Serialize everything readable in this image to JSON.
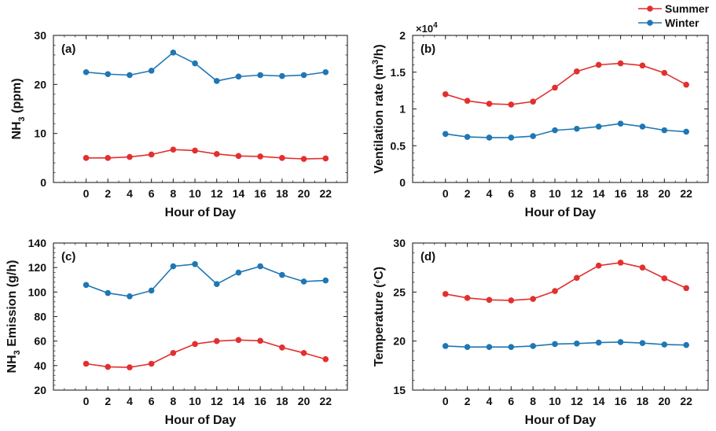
{
  "legend": {
    "position": "top-right",
    "entries": [
      {
        "name": "Summer",
        "color": "#e32f2f"
      },
      {
        "name": "Winter",
        "color": "#1f77b4"
      }
    ]
  },
  "chart_data": [
    {
      "type": "line",
      "panel": "(a)",
      "title": "",
      "xlabel": "Hour of Day",
      "ylabel_main": "NH",
      "ylabel_sub": "3",
      "ylabel_tail": " (ppm)",
      "xlim": [
        -3,
        24
      ],
      "ylim": [
        0,
        30
      ],
      "xticks": [
        0,
        2,
        4,
        6,
        8,
        10,
        12,
        14,
        16,
        18,
        20,
        22
      ],
      "yticks": [
        0,
        10,
        20,
        30
      ],
      "ytick_labels": [
        "0",
        "10",
        "20",
        "30"
      ],
      "x": [
        0,
        2,
        4,
        6,
        8,
        10,
        12,
        14,
        16,
        18,
        20,
        22
      ],
      "series": [
        {
          "name": "Summer",
          "color": "#e32f2f",
          "values": [
            5.0,
            5.0,
            5.2,
            5.7,
            6.7,
            6.5,
            5.8,
            5.4,
            5.3,
            5.0,
            4.8,
            4.9
          ]
        },
        {
          "name": "Winter",
          "color": "#1f77b4",
          "values": [
            22.5,
            22.1,
            21.9,
            22.8,
            26.5,
            24.3,
            20.7,
            21.6,
            21.9,
            21.7,
            21.9,
            22.5
          ]
        }
      ]
    },
    {
      "type": "line",
      "panel": "(b)",
      "title": "",
      "xlabel": "Hour of Day",
      "ylabel_main": "Ventilation rate (m",
      "ylabel_sup": "3",
      "ylabel_tail": "/h)",
      "scale_label": "×10",
      "scale_exp": "4",
      "xlim": [
        -3,
        24
      ],
      "ylim": [
        0,
        2
      ],
      "xticks": [
        0,
        2,
        4,
        6,
        8,
        10,
        12,
        14,
        16,
        18,
        20,
        22
      ],
      "yticks": [
        0,
        0.5,
        1,
        1.5,
        2
      ],
      "ytick_labels": [
        "0",
        "0.5",
        "1",
        "1.5",
        "2"
      ],
      "x": [
        0,
        2,
        4,
        6,
        8,
        10,
        12,
        14,
        16,
        18,
        20,
        22
      ],
      "series": [
        {
          "name": "Summer",
          "color": "#e32f2f",
          "values": [
            1.2,
            1.11,
            1.07,
            1.06,
            1.1,
            1.29,
            1.51,
            1.6,
            1.62,
            1.59,
            1.49,
            1.33
          ]
        },
        {
          "name": "Winter",
          "color": "#1f77b4",
          "values": [
            0.66,
            0.62,
            0.61,
            0.61,
            0.63,
            0.71,
            0.73,
            0.76,
            0.8,
            0.76,
            0.71,
            0.69
          ]
        }
      ]
    },
    {
      "type": "line",
      "panel": "(c)",
      "title": "",
      "xlabel": "Hour of Day",
      "ylabel_main": "NH",
      "ylabel_sub": "3",
      "ylabel_tail": " Emission (g/h)",
      "xlim": [
        -3,
        24
      ],
      "ylim": [
        20,
        140
      ],
      "xticks": [
        0,
        2,
        4,
        6,
        8,
        10,
        12,
        14,
        16,
        18,
        20,
        22
      ],
      "yticks": [
        20,
        40,
        60,
        80,
        100,
        120,
        140
      ],
      "ytick_labels": [
        "20",
        "40",
        "60",
        "80",
        "100",
        "120",
        "140"
      ],
      "x": [
        0,
        2,
        4,
        6,
        8,
        10,
        12,
        14,
        16,
        18,
        20,
        22
      ],
      "series": [
        {
          "name": "Summer",
          "color": "#e32f2f",
          "values": [
            41.5,
            39.0,
            38.6,
            41.5,
            50.3,
            57.6,
            60.0,
            60.9,
            60.2,
            54.8,
            50.3,
            45.2
          ]
        },
        {
          "name": "Winter",
          "color": "#1f77b4",
          "values": [
            105.8,
            99.2,
            96.5,
            101.2,
            121.0,
            122.8,
            106.5,
            115.9,
            121.0,
            114.0,
            108.6,
            109.5
          ]
        }
      ]
    },
    {
      "type": "line",
      "panel": "(d)",
      "title": "",
      "xlabel": "Hour of Day",
      "ylabel_main": "Temperature (",
      "ylabel_deg": "°",
      "ylabel_tail": "C)",
      "xlim": [
        -3,
        24
      ],
      "ylim": [
        15,
        30
      ],
      "xticks": [
        0,
        2,
        4,
        6,
        8,
        10,
        12,
        14,
        16,
        18,
        20,
        22
      ],
      "yticks": [
        15,
        20,
        25,
        30
      ],
      "ytick_labels": [
        "15",
        "20",
        "25",
        "30"
      ],
      "x": [
        0,
        2,
        4,
        6,
        8,
        10,
        12,
        14,
        16,
        18,
        20,
        22
      ],
      "series": [
        {
          "name": "Summer",
          "color": "#e32f2f",
          "values": [
            24.8,
            24.4,
            24.2,
            24.15,
            24.3,
            25.1,
            26.45,
            27.7,
            28.0,
            27.5,
            26.4,
            25.4
          ]
        },
        {
          "name": "Winter",
          "color": "#1f77b4",
          "values": [
            19.5,
            19.4,
            19.4,
            19.4,
            19.5,
            19.7,
            19.75,
            19.85,
            19.9,
            19.8,
            19.65,
            19.6
          ]
        }
      ]
    }
  ]
}
